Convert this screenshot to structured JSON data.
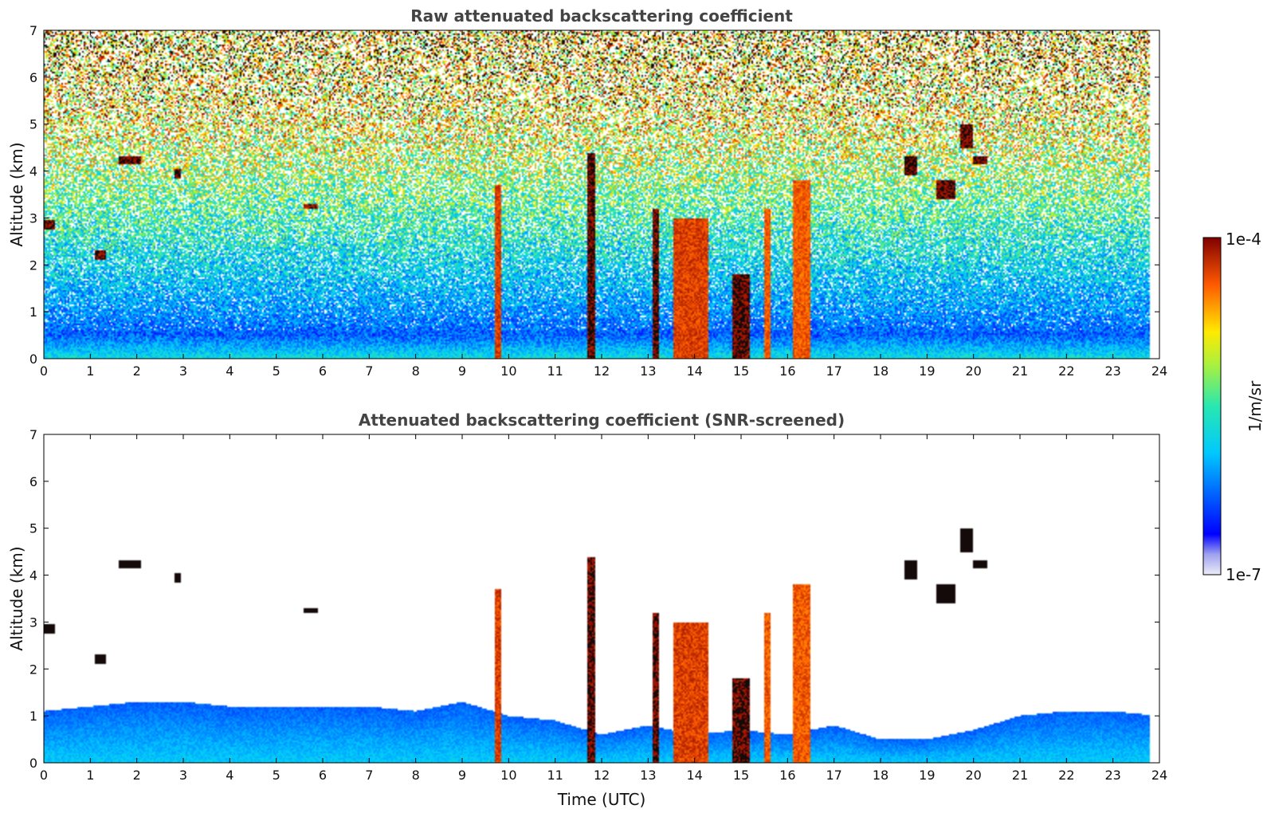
{
  "chart_data": [
    {
      "type": "heatmap",
      "title": "Raw attenuated backscattering coefficient",
      "xlabel": "",
      "ylabel": "Altitude (km)",
      "xlim": [
        0,
        24
      ],
      "ylim": [
        0,
        7
      ],
      "xticks": [
        "0",
        "1",
        "2",
        "3",
        "4",
        "5",
        "6",
        "7",
        "8",
        "9",
        "10",
        "11",
        "12",
        "13",
        "14",
        "15",
        "16",
        "17",
        "18",
        "19",
        "20",
        "21",
        "22",
        "23",
        "24"
      ],
      "yticks": [
        "0",
        "1",
        "2",
        "3",
        "4",
        "5",
        "6",
        "7"
      ],
      "data_end_time": 23.8,
      "background_profile": {
        "altitude": [
          0,
          0.5,
          1,
          2,
          3,
          4,
          5,
          6,
          7
        ],
        "log10_value": [
          -5.7,
          -6.3,
          -6.1,
          -5.8,
          -5.5,
          -5.2,
          -4.9,
          -4.7,
          -4.5
        ]
      },
      "features": [
        {
          "time": [
            0.0,
            0.25
          ],
          "altitude": [
            2.75,
            2.95
          ],
          "log10_value": -4.0
        },
        {
          "time": [
            1.1,
            1.35
          ],
          "altitude": [
            2.1,
            2.3
          ],
          "log10_value": -4.0
        },
        {
          "time": [
            1.6,
            2.1
          ],
          "altitude": [
            4.15,
            4.3
          ],
          "log10_value": -4.0
        },
        {
          "time": [
            2.8,
            2.95
          ],
          "altitude": [
            3.85,
            4.05
          ],
          "log10_value": -4.0
        },
        {
          "time": [
            5.6,
            5.9
          ],
          "altitude": [
            3.2,
            3.3
          ],
          "log10_value": -4.1
        },
        {
          "time": [
            9.7,
            9.85
          ],
          "altitude": [
            0,
            3.7
          ],
          "log10_value": -4.3
        },
        {
          "time": [
            11.7,
            11.85
          ],
          "altitude": [
            0,
            4.4
          ],
          "log10_value": -4.0
        },
        {
          "time": [
            13.1,
            13.25
          ],
          "altitude": [
            0,
            3.2
          ],
          "log10_value": -4.0
        },
        {
          "time": [
            13.55,
            14.3
          ],
          "altitude": [
            0,
            3.0
          ],
          "log10_value": -4.3
        },
        {
          "time": [
            14.8,
            15.2
          ],
          "altitude": [
            0,
            1.8
          ],
          "log10_value": -4.0
        },
        {
          "time": [
            15.5,
            15.65
          ],
          "altitude": [
            0,
            3.2
          ],
          "log10_value": -4.4
        },
        {
          "time": [
            16.1,
            16.5
          ],
          "altitude": [
            0,
            3.8
          ],
          "log10_value": -4.4
        },
        {
          "time": [
            18.5,
            18.8
          ],
          "altitude": [
            3.9,
            4.3
          ],
          "log10_value": -4.0
        },
        {
          "time": [
            19.2,
            19.6
          ],
          "altitude": [
            3.4,
            3.8
          ],
          "log10_value": -4.0
        },
        {
          "time": [
            19.7,
            20.0
          ],
          "altitude": [
            4.5,
            5.0
          ],
          "log10_value": -4.0
        },
        {
          "time": [
            20.0,
            20.3
          ],
          "altitude": [
            4.15,
            4.3
          ],
          "log10_value": -4.0
        }
      ]
    },
    {
      "type": "heatmap",
      "title": "Attenuated backscattering coefficient (SNR-screened)",
      "xlabel": "Time (UTC)",
      "ylabel": "Altitude (km)",
      "xlim": [
        0,
        24
      ],
      "ylim": [
        0,
        7
      ],
      "xticks": [
        "0",
        "1",
        "2",
        "3",
        "4",
        "5",
        "6",
        "7",
        "8",
        "9",
        "10",
        "11",
        "12",
        "13",
        "14",
        "15",
        "16",
        "17",
        "18",
        "19",
        "20",
        "21",
        "22",
        "23",
        "24"
      ],
      "yticks": [
        "0",
        "1",
        "2",
        "3",
        "4",
        "5",
        "6",
        "7"
      ],
      "data_end_time": 23.8,
      "boundary_layer_top_km": [
        1.1,
        1.2,
        1.3,
        1.3,
        1.2,
        1.2,
        1.2,
        1.2,
        1.1,
        1.3,
        1.0,
        0.9,
        0.6,
        0.8,
        0.6,
        0.7,
        0.6,
        0.8,
        0.5,
        0.5,
        0.7,
        1.0,
        1.1,
        1.1,
        1.0
      ],
      "features": [
        {
          "time": [
            0.0,
            0.25
          ],
          "altitude": [
            2.75,
            2.95
          ],
          "log10_value": -3.5
        },
        {
          "time": [
            1.1,
            1.35
          ],
          "altitude": [
            2.1,
            2.3
          ],
          "log10_value": -3.5
        },
        {
          "time": [
            1.6,
            2.1
          ],
          "altitude": [
            4.15,
            4.3
          ],
          "log10_value": -3.5
        },
        {
          "time": [
            2.8,
            2.95
          ],
          "altitude": [
            3.85,
            4.05
          ],
          "log10_value": -3.5
        },
        {
          "time": [
            5.6,
            5.9
          ],
          "altitude": [
            3.2,
            3.3
          ],
          "log10_value": -3.5
        },
        {
          "time": [
            9.7,
            9.85
          ],
          "altitude": [
            0,
            3.7
          ],
          "log10_value": -4.3
        },
        {
          "time": [
            11.7,
            11.85
          ],
          "altitude": [
            0,
            4.4
          ],
          "log10_value": -4.0
        },
        {
          "time": [
            13.1,
            13.25
          ],
          "altitude": [
            0,
            3.2
          ],
          "log10_value": -4.0
        },
        {
          "time": [
            13.55,
            14.3
          ],
          "altitude": [
            0,
            3.0
          ],
          "log10_value": -4.3
        },
        {
          "time": [
            14.8,
            15.2
          ],
          "altitude": [
            0,
            1.8
          ],
          "log10_value": -4.0
        },
        {
          "time": [
            15.5,
            15.65
          ],
          "altitude": [
            0,
            3.2
          ],
          "log10_value": -4.4
        },
        {
          "time": [
            16.1,
            16.5
          ],
          "altitude": [
            0,
            3.8
          ],
          "log10_value": -4.4
        },
        {
          "time": [
            18.5,
            18.8
          ],
          "altitude": [
            3.9,
            4.3
          ],
          "log10_value": -3.5
        },
        {
          "time": [
            19.2,
            19.6
          ],
          "altitude": [
            3.4,
            3.8
          ],
          "log10_value": -3.5
        },
        {
          "time": [
            19.7,
            20.0
          ],
          "altitude": [
            4.5,
            5.0
          ],
          "log10_value": -3.5
        },
        {
          "time": [
            20.0,
            20.3
          ],
          "altitude": [
            4.15,
            4.3
          ],
          "log10_value": -3.5
        }
      ]
    }
  ],
  "colorbar": {
    "label": "1/m/sr",
    "max_label": "1e-4",
    "min_label": "1e-7",
    "scale": "log",
    "range": [
      -7,
      -4
    ],
    "colormap": "jet"
  }
}
